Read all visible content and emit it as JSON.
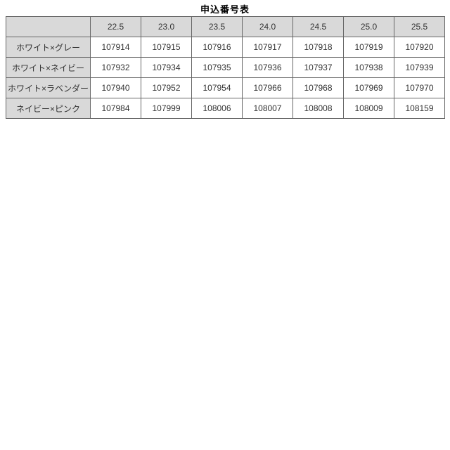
{
  "page_title": "申込番号表",
  "table": {
    "corner_label": "",
    "size_headers": [
      "22.5",
      "23.0",
      "23.5",
      "24.0",
      "24.5",
      "25.0",
      "25.5"
    ],
    "rows": [
      {
        "label": "ホワイト×グレー",
        "values": [
          "107914",
          "107915",
          "107916",
          "107917",
          "107918",
          "107919",
          "107920"
        ]
      },
      {
        "label": "ホワイト×ネイビー",
        "values": [
          "107932",
          "107934",
          "107935",
          "107936",
          "107937",
          "107938",
          "107939"
        ]
      },
      {
        "label": "ホワイト×ラベンダー",
        "values": [
          "107940",
          "107952",
          "107954",
          "107966",
          "107968",
          "107969",
          "107970"
        ]
      },
      {
        "label": "ネイビー×ピンク",
        "values": [
          "107984",
          "107999",
          "108006",
          "108007",
          "108008",
          "108009",
          "108159"
        ]
      }
    ]
  },
  "colors": {
    "header_background": "#d9d9d9",
    "border": "#666666",
    "cell_text": "#333333",
    "title_text": "#000000",
    "page_background": "#ffffff"
  }
}
